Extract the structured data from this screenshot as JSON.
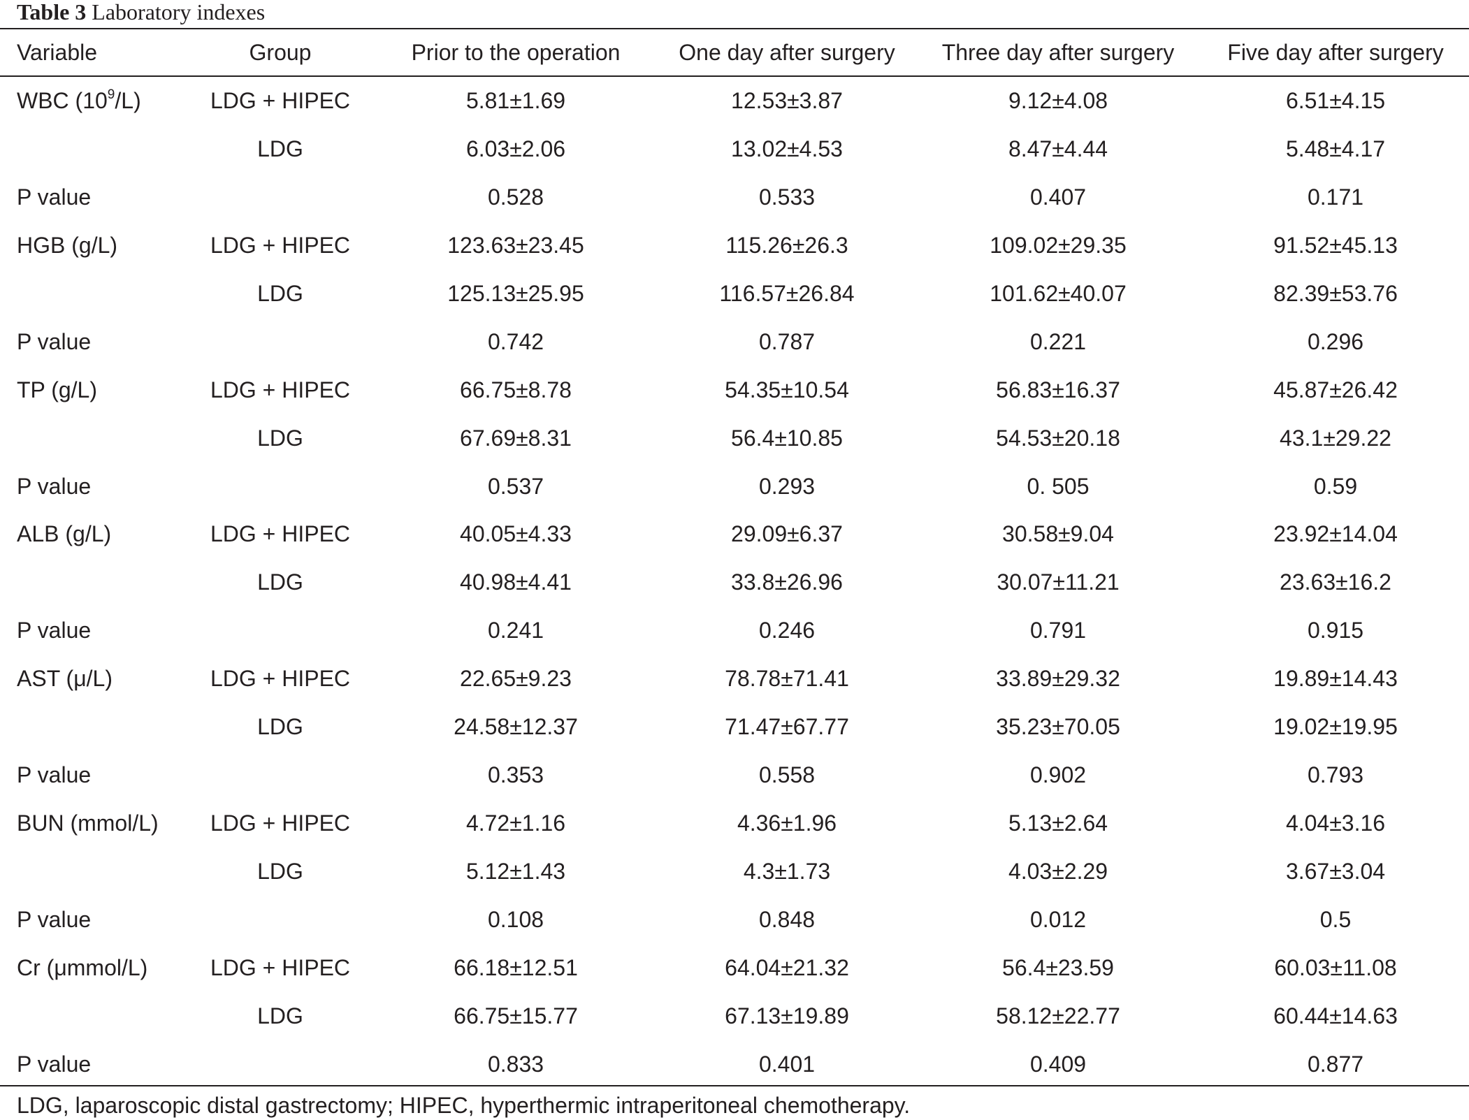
{
  "caption": {
    "label": "Table 3",
    "title": "Laboratory indexes"
  },
  "headers": {
    "variable": "Variable",
    "group": "Group",
    "prior": "Prior to the operation",
    "day1": "One day after surgery",
    "day3": "Three day after surgery",
    "day5": "Five day after surgery"
  },
  "rows": [
    {
      "variable": "WBC (10",
      "variable_sup": "9",
      "variable_tail": "/L)",
      "group": "LDG + HIPEC",
      "prior": "5.81±1.69",
      "day1": "12.53±3.87",
      "day3": "9.12±4.08",
      "day5": "6.51±4.15"
    },
    {
      "variable": "",
      "group": "LDG",
      "prior": "6.03±2.06",
      "day1": "13.02±4.53",
      "day3": "8.47±4.44",
      "day5": "5.48±4.17"
    },
    {
      "variable": "P value",
      "group": "",
      "prior": "0.528",
      "day1": "0.533",
      "day3": "0.407",
      "day5": "0.171"
    },
    {
      "variable": "HGB (g/L)",
      "group": "LDG + HIPEC",
      "prior": "123.63±23.45",
      "day1": "115.26±26.3",
      "day3": "109.02±29.35",
      "day5": "91.52±45.13"
    },
    {
      "variable": "",
      "group": "LDG",
      "prior": "125.13±25.95",
      "day1": "116.57±26.84",
      "day3": "101.62±40.07",
      "day5": "82.39±53.76"
    },
    {
      "variable": "P value",
      "group": "",
      "prior": "0.742",
      "day1": "0.787",
      "day3": "0.221",
      "day5": "0.296"
    },
    {
      "variable": "TP (g/L)",
      "group": "LDG + HIPEC",
      "prior": "66.75±8.78",
      "day1": "54.35±10.54",
      "day3": "56.83±16.37",
      "day5": "45.87±26.42"
    },
    {
      "variable": "",
      "group": "LDG",
      "prior": "67.69±8.31",
      "day1": "56.4±10.85",
      "day3": "54.53±20.18",
      "day5": "43.1±29.22"
    },
    {
      "variable": "P value",
      "group": "",
      "prior": "0.537",
      "day1": "0.293",
      "day3": "0. 505",
      "day5": "0.59"
    },
    {
      "variable": "ALB (g/L)",
      "group": "LDG + HIPEC",
      "prior": "40.05±4.33",
      "day1": "29.09±6.37",
      "day3": "30.58±9.04",
      "day5": "23.92±14.04"
    },
    {
      "variable": "",
      "group": "LDG",
      "prior": "40.98±4.41",
      "day1": "33.8±26.96",
      "day3": "30.07±11.21",
      "day5": "23.63±16.2"
    },
    {
      "variable": "P value",
      "group": "",
      "prior": "0.241",
      "day1": "0.246",
      "day3": "0.791",
      "day5": "0.915"
    },
    {
      "variable": "AST (μ/L)",
      "group": "LDG + HIPEC",
      "prior": "22.65±9.23",
      "day1": "78.78±71.41",
      "day3": "33.89±29.32",
      "day5": "19.89±14.43"
    },
    {
      "variable": "",
      "group": "LDG",
      "prior": "24.58±12.37",
      "day1": "71.47±67.77",
      "day3": "35.23±70.05",
      "day5": "19.02±19.95"
    },
    {
      "variable": "P value",
      "group": "",
      "prior": "0.353",
      "day1": "0.558",
      "day3": "0.902",
      "day5": "0.793"
    },
    {
      "variable": "BUN (mmol/L)",
      "group": "LDG + HIPEC",
      "prior": "4.72±1.16",
      "day1": "4.36±1.96",
      "day3": "5.13±2.64",
      "day5": "4.04±3.16"
    },
    {
      "variable": "",
      "group": "LDG",
      "prior": "5.12±1.43",
      "day1": "4.3±1.73",
      "day3": "4.03±2.29",
      "day5": "3.67±3.04"
    },
    {
      "variable": "P value",
      "group": "",
      "prior": "0.108",
      "day1": "0.848",
      "day3": "0.012",
      "day5": "0.5"
    },
    {
      "variable": "Cr (μmmol/L)",
      "group": "LDG + HIPEC",
      "prior": "66.18±12.51",
      "day1": "64.04±21.32",
      "day3": "56.4±23.59",
      "day5": "60.03±11.08"
    },
    {
      "variable": "",
      "group": "LDG",
      "prior": "66.75±15.77",
      "day1": "67.13±19.89",
      "day3": "58.12±22.77",
      "day5": "60.44±14.63"
    },
    {
      "variable": "P value",
      "group": "",
      "prior": "0.833",
      "day1": "0.401",
      "day3": "0.409",
      "day5": "0.877"
    }
  ],
  "footnote": "LDG, laparoscopic distal gastrectomy; HIPEC, hyperthermic intraperitoneal chemotherapy."
}
